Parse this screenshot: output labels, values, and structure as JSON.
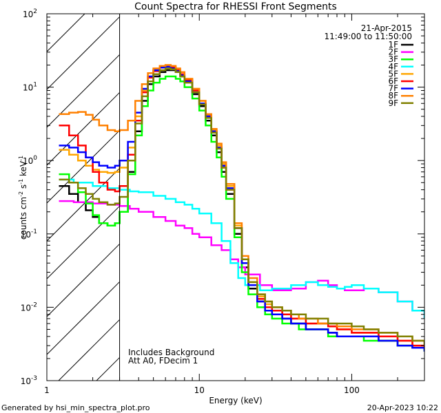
{
  "chart_data": {
    "type": "line",
    "title": "Count Spectra for RHESSI Front Segments",
    "xlabel": "Energy (keV)",
    "ylabel_parts": {
      "base": "counts cm",
      "e1": "-2",
      "mid": " s",
      "e2": "-1",
      "tail": " keV",
      "e3": "-1"
    },
    "xscale": "log",
    "yscale": "log",
    "xlim": [
      1,
      300
    ],
    "ylim": [
      0.001,
      100
    ],
    "x_ticks": [
      {
        "value": 1,
        "label": "1"
      },
      {
        "value": 10,
        "label": "10"
      },
      {
        "value": 100,
        "label": "100"
      }
    ],
    "y_ticks": [
      {
        "value": 0.001,
        "base": "10",
        "exp": "-3"
      },
      {
        "value": 0.01,
        "base": "10",
        "exp": "-2"
      },
      {
        "value": 0.1,
        "base": "10",
        "exp": "-1"
      },
      {
        "value": 1,
        "base": "10",
        "exp": "0"
      },
      {
        "value": 10,
        "base": "10",
        "exp": "1"
      },
      {
        "value": 100,
        "base": "10",
        "exp": "2"
      }
    ],
    "hatched_region": [
      1,
      3
    ],
    "annotations": {
      "date": "21-Apr-2015",
      "time_range": "11:49:00 to 11:50:00",
      "note1": "Includes Background",
      "note2": "Att A0, FDecim 1",
      "footer_left": "Generated by hsi_min_spectra_plot.pro",
      "footer_right": "20-Apr-2023 10:22"
    },
    "series": [
      {
        "name": "1F",
        "color": "#000000",
        "x": [
          1.2,
          1.4,
          1.6,
          1.8,
          2.0,
          2.2,
          2.5,
          2.8,
          3.0,
          3.4,
          3.8,
          4.2,
          4.6,
          5.0,
          5.5,
          6.0,
          6.5,
          7.0,
          7.5,
          8.0,
          9.0,
          10,
          11,
          12,
          13,
          14,
          15,
          17,
          19,
          21,
          24,
          27,
          30,
          35,
          40,
          45,
          50,
          60,
          70,
          80,
          100,
          120,
          150,
          200,
          250,
          300
        ],
        "y": [
          0.45,
          0.35,
          0.27,
          0.21,
          0.17,
          0.14,
          0.13,
          0.14,
          0.2,
          0.7,
          2.5,
          6.5,
          11,
          14,
          16,
          17,
          17,
          16,
          14,
          12,
          8,
          5.5,
          3.5,
          2.2,
          1.3,
          0.7,
          0.35,
          0.1,
          0.035,
          0.018,
          0.012,
          0.009,
          0.008,
          0.007,
          0.006,
          0.006,
          0.005,
          0.005,
          0.0045,
          0.004,
          0.004,
          0.004,
          0.0035,
          0.003,
          0.0028,
          0.0025
        ]
      },
      {
        "name": "2F",
        "color": "#ff00ff",
        "x": [
          1.2,
          1.5,
          2.0,
          2.5,
          3.0,
          3.5,
          4.0,
          5.0,
          6.0,
          7.0,
          8.0,
          9.0,
          10,
          12,
          14,
          16,
          18,
          20,
          25,
          30,
          40,
          50,
          60,
          70,
          80,
          90,
          100,
          120,
          150,
          200,
          250,
          300
        ],
        "y": [
          0.28,
          0.27,
          0.26,
          0.25,
          0.24,
          0.22,
          0.2,
          0.17,
          0.15,
          0.13,
          0.12,
          0.1,
          0.09,
          0.07,
          0.06,
          0.045,
          0.035,
          0.028,
          0.02,
          0.017,
          0.018,
          0.022,
          0.023,
          0.02,
          0.018,
          0.017,
          0.017,
          0.018,
          0.016,
          0.012,
          0.009,
          0.007
        ]
      },
      {
        "name": "3F",
        "color": "#00ff00",
        "x": [
          1.2,
          1.4,
          1.6,
          1.8,
          2.0,
          2.2,
          2.5,
          2.8,
          3.0,
          3.4,
          3.8,
          4.2,
          4.6,
          5.0,
          5.5,
          6.0,
          6.5,
          7.0,
          7.5,
          8.0,
          9.0,
          10,
          11,
          12,
          13,
          14,
          15,
          17,
          19,
          21,
          24,
          27,
          30,
          35,
          40,
          45,
          50,
          60,
          70,
          80,
          100,
          120,
          150,
          200,
          250,
          300
        ],
        "y": [
          0.65,
          0.5,
          0.37,
          0.26,
          0.18,
          0.14,
          0.13,
          0.14,
          0.2,
          0.65,
          2.2,
          5.5,
          9,
          11.5,
          13,
          14,
          14,
          13,
          12,
          10,
          7,
          4.8,
          3,
          1.8,
          1.1,
          0.6,
          0.3,
          0.09,
          0.03,
          0.015,
          0.01,
          0.008,
          0.007,
          0.006,
          0.006,
          0.005,
          0.005,
          0.005,
          0.004,
          0.004,
          0.004,
          0.0035,
          0.0035,
          0.003,
          0.0028,
          0.0025
        ]
      },
      {
        "name": "4F",
        "color": "#00ffff",
        "x": [
          1.2,
          1.5,
          2.0,
          2.5,
          3.0,
          3.5,
          4.0,
          5.0,
          6.0,
          7.0,
          8.0,
          9.0,
          10,
          12,
          14,
          16,
          18,
          20,
          25,
          30,
          40,
          50,
          60,
          70,
          80,
          90,
          100,
          120,
          150,
          200,
          250,
          300
        ],
        "y": [
          0.55,
          0.5,
          0.45,
          0.42,
          0.4,
          0.38,
          0.37,
          0.33,
          0.3,
          0.27,
          0.25,
          0.22,
          0.19,
          0.14,
          0.08,
          0.04,
          0.025,
          0.02,
          0.017,
          0.018,
          0.02,
          0.022,
          0.02,
          0.019,
          0.018,
          0.019,
          0.02,
          0.018,
          0.016,
          0.012,
          0.009,
          0.007
        ]
      },
      {
        "name": "5F",
        "color": "#ffa500",
        "x": [
          1.2,
          1.4,
          1.6,
          1.8,
          2.0,
          2.2,
          2.5,
          2.8,
          3.0,
          3.4,
          3.8,
          4.2,
          4.6,
          5.0,
          5.5,
          6.0,
          6.5,
          7.0,
          7.5,
          8.0,
          9.0,
          10,
          11,
          12,
          13,
          14,
          15,
          17,
          19,
          21,
          24,
          27,
          30,
          35,
          40,
          45,
          50,
          60,
          70,
          80,
          100,
          120,
          150,
          200,
          250,
          300
        ],
        "y": [
          1.4,
          1.2,
          1.0,
          0.85,
          0.75,
          0.7,
          0.68,
          0.7,
          0.8,
          1.5,
          4,
          9,
          14,
          17,
          19,
          20,
          19,
          17,
          15,
          13,
          9.5,
          6.5,
          4.2,
          2.6,
          1.6,
          0.9,
          0.45,
          0.13,
          0.045,
          0.022,
          0.014,
          0.011,
          0.009,
          0.008,
          0.007,
          0.007,
          0.006,
          0.006,
          0.0055,
          0.005,
          0.0045,
          0.0045,
          0.004,
          0.0035,
          0.003,
          0.0028
        ]
      },
      {
        "name": "6F",
        "color": "#ff0000",
        "x": [
          1.2,
          1.4,
          1.6,
          1.8,
          2.0,
          2.2,
          2.5,
          2.8,
          3.0,
          3.4,
          3.8,
          4.2,
          4.6,
          5.0,
          5.5,
          6.0,
          6.5,
          7.0,
          7.5,
          8.0,
          9.0,
          10,
          11,
          12,
          13,
          14,
          15,
          17,
          19,
          21,
          24,
          27,
          30,
          35,
          40,
          45,
          50,
          60,
          70,
          80,
          100,
          120,
          150,
          200,
          250,
          300
        ],
        "y": [
          3.0,
          2.2,
          1.6,
          1.1,
          0.7,
          0.5,
          0.4,
          0.38,
          0.45,
          1.2,
          3.5,
          8.5,
          13.5,
          16.5,
          18.5,
          19,
          18.5,
          17,
          15,
          12.5,
          9,
          6,
          4,
          2.5,
          1.5,
          0.8,
          0.4,
          0.12,
          0.04,
          0.02,
          0.013,
          0.01,
          0.009,
          0.008,
          0.007,
          0.007,
          0.006,
          0.006,
          0.0055,
          0.005,
          0.0045,
          0.0045,
          0.004,
          0.0035,
          0.003,
          0.0028
        ]
      },
      {
        "name": "7F",
        "color": "#0000ff",
        "x": [
          1.2,
          1.4,
          1.6,
          1.8,
          2.0,
          2.2,
          2.5,
          2.8,
          3.0,
          3.4,
          3.8,
          4.2,
          4.6,
          5.0,
          5.5,
          6.0,
          6.5,
          7.0,
          7.5,
          8.0,
          9.0,
          10,
          11,
          12,
          13,
          14,
          15,
          17,
          19,
          21,
          24,
          27,
          30,
          35,
          40,
          45,
          50,
          60,
          70,
          80,
          100,
          120,
          150,
          200,
          250,
          300
        ],
        "y": [
          1.6,
          1.5,
          1.3,
          1.1,
          0.95,
          0.85,
          0.8,
          0.85,
          1.0,
          1.8,
          4.5,
          9.5,
          14,
          17,
          18.5,
          19,
          18,
          16.5,
          14.5,
          12,
          8.5,
          6,
          4,
          2.5,
          1.5,
          0.85,
          0.42,
          0.12,
          0.04,
          0.02,
          0.012,
          0.009,
          0.008,
          0.007,
          0.006,
          0.006,
          0.005,
          0.005,
          0.0045,
          0.004,
          0.004,
          0.004,
          0.0035,
          0.003,
          0.0028,
          0.0025
        ]
      },
      {
        "name": "8F",
        "color": "#ff8000",
        "x": [
          1.2,
          1.4,
          1.6,
          1.8,
          2.0,
          2.2,
          2.5,
          2.8,
          3.0,
          3.4,
          3.8,
          4.2,
          4.6,
          5.0,
          5.5,
          6.0,
          6.5,
          7.0,
          7.5,
          8.0,
          9.0,
          10,
          11,
          12,
          13,
          14,
          15,
          17,
          19,
          21,
          24,
          27,
          30,
          35,
          40,
          45,
          50,
          60,
          70,
          80,
          100,
          120,
          150,
          200,
          250,
          300
        ],
        "y": [
          4.3,
          4.5,
          4.6,
          4.2,
          3.6,
          3.0,
          2.6,
          2.5,
          2.6,
          3.5,
          6.5,
          11,
          15.5,
          18,
          19.5,
          20,
          19.5,
          18,
          16,
          13,
          9.5,
          6.5,
          4.3,
          2.7,
          1.7,
          0.95,
          0.48,
          0.14,
          0.05,
          0.025,
          0.015,
          0.012,
          0.01,
          0.009,
          0.008,
          0.007,
          0.007,
          0.006,
          0.006,
          0.0055,
          0.005,
          0.005,
          0.0045,
          0.004,
          0.0035,
          0.003
        ]
      },
      {
        "name": "9F",
        "color": "#808000",
        "x": [
          1.2,
          1.4,
          1.6,
          1.8,
          2.0,
          2.2,
          2.5,
          2.8,
          3.0,
          3.4,
          3.8,
          4.2,
          4.6,
          5.0,
          5.5,
          6.0,
          6.5,
          7.0,
          7.5,
          8.0,
          9.0,
          10,
          11,
          12,
          13,
          14,
          15,
          17,
          19,
          21,
          24,
          27,
          30,
          35,
          40,
          45,
          50,
          60,
          70,
          80,
          100,
          120,
          150,
          200,
          250,
          300
        ],
        "y": [
          0.55,
          0.5,
          0.42,
          0.35,
          0.3,
          0.27,
          0.25,
          0.26,
          0.32,
          1.0,
          3.2,
          7.5,
          12,
          15,
          17,
          18,
          17.5,
          16,
          14,
          11.5,
          8.5,
          5.8,
          3.8,
          2.4,
          1.45,
          0.8,
          0.4,
          0.12,
          0.045,
          0.022,
          0.015,
          0.012,
          0.01,
          0.009,
          0.008,
          0.008,
          0.007,
          0.007,
          0.006,
          0.006,
          0.0055,
          0.005,
          0.0045,
          0.004,
          0.0035,
          0.003
        ]
      }
    ]
  }
}
